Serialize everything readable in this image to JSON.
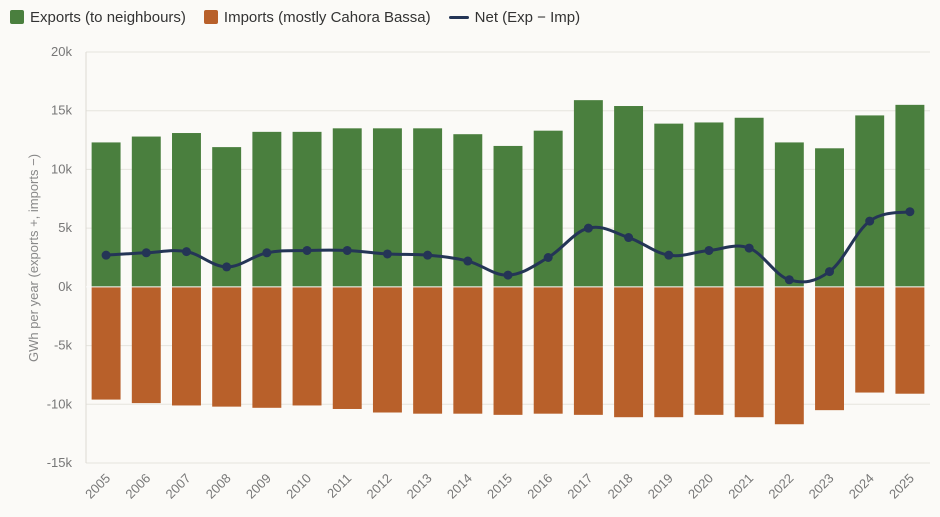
{
  "legend": {
    "exports_label": "Exports (to neighbours)",
    "imports_label": "Imports (mostly Cahora Bassa)",
    "net_label": "Net (Exp − Imp)"
  },
  "colors": {
    "exports": "#4a7f3e",
    "imports": "#b8602a",
    "net": "#243556"
  },
  "chart_data": {
    "type": "bar",
    "title": "",
    "xlabel": "",
    "ylabel": "GWh per year  (exports +, imports −)",
    "ylim": [
      -15000,
      20000
    ],
    "yticks": [
      -15000,
      -10000,
      -5000,
      0,
      5000,
      10000,
      15000,
      20000
    ],
    "ytick_labels": [
      "-15k",
      "-10k",
      "-5k",
      "0k",
      "5k",
      "10k",
      "15k",
      "20k"
    ],
    "grid": true,
    "legend_position": "top-left",
    "categories": [
      "2005",
      "2006",
      "2007",
      "2008",
      "2009",
      "2010",
      "2011",
      "2012",
      "2013",
      "2014",
      "2015",
      "2016",
      "2017",
      "2018",
      "2019",
      "2020",
      "2021",
      "2022",
      "2023",
      "2024",
      "2025"
    ],
    "series": [
      {
        "name": "Exports (to neighbours)",
        "type": "bar",
        "values": [
          12300,
          12800,
          13100,
          11900,
          13200,
          13200,
          13500,
          13500,
          13500,
          13000,
          12000,
          13300,
          15900,
          15400,
          13900,
          14000,
          14400,
          12300,
          11800,
          14600,
          15500
        ]
      },
      {
        "name": "Imports (mostly Cahora Bassa)",
        "type": "bar",
        "values": [
          -9600,
          -9900,
          -10100,
          -10200,
          -10300,
          -10100,
          -10400,
          -10700,
          -10800,
          -10800,
          -10900,
          -10800,
          -10900,
          -11100,
          -11100,
          -10900,
          -11100,
          -11700,
          -10500,
          -9000,
          -9100
        ]
      },
      {
        "name": "Net (Exp − Imp)",
        "type": "line",
        "values": [
          2700,
          2900,
          3000,
          1700,
          2900,
          3100,
          3100,
          2800,
          2700,
          2200,
          1000,
          2500,
          5000,
          4200,
          2700,
          3100,
          3300,
          600,
          1300,
          5600,
          6400
        ]
      }
    ]
  }
}
